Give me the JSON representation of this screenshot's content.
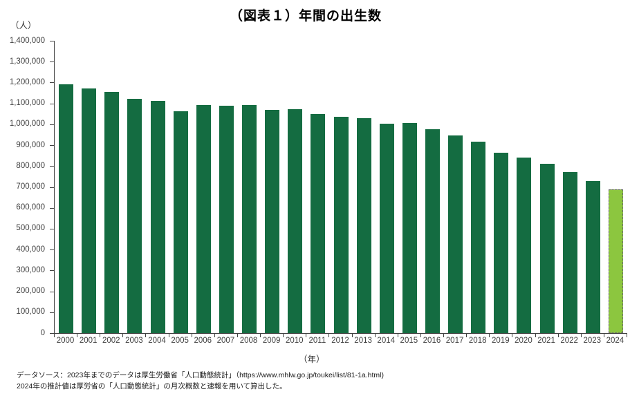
{
  "chart_data": {
    "type": "bar",
    "title": "（図表１）年間の出生数",
    "y_unit": "（人）",
    "x_unit": "（年）",
    "categories": [
      2000,
      2001,
      2002,
      2003,
      2004,
      2005,
      2006,
      2007,
      2008,
      2009,
      2010,
      2011,
      2012,
      2013,
      2014,
      2015,
      2016,
      2017,
      2018,
      2019,
      2020,
      2021,
      2022,
      2023,
      2024
    ],
    "values": [
      1190547,
      1170662,
      1153855,
      1123610,
      1110721,
      1062530,
      1092674,
      1089818,
      1091156,
      1070036,
      1071305,
      1050807,
      1037232,
      1029817,
      1003609,
      1005721,
      977242,
      946146,
      918400,
      865239,
      840835,
      811622,
      770759,
      727277,
      690000
    ],
    "ylim": [
      0,
      1400000
    ],
    "y_tick_step": 100000,
    "grid": false,
    "legend": "none",
    "bar_color": "#146c41",
    "estimate_bar_color": "#8cc63f",
    "estimate_bar_border": "dashed #6b6b6b",
    "estimate_years": [
      2024
    ]
  },
  "footer": {
    "line1": "データソース：2023年までのデータは厚生労働省「人口動態統計」（https://www.mhlw.go.jp/toukei/list/81-1a.html)",
    "line2": "2024年の推計値は厚労省の「人口動態統計」の月次概数と速報を用いて算出した。"
  }
}
